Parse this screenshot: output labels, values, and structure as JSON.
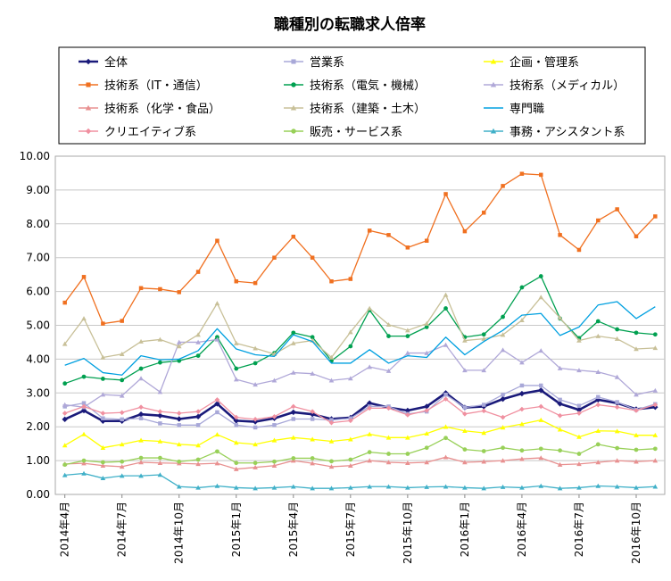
{
  "chart_data": {
    "type": "line",
    "title": "職種別の転職求人倍率",
    "xlabel": "",
    "ylabel": "",
    "ylim": [
      0,
      10
    ],
    "yticks": [
      "0.00",
      "1.00",
      "2.00",
      "3.00",
      "4.00",
      "5.00",
      "6.00",
      "7.00",
      "8.00",
      "9.00",
      "10.00"
    ],
    "grid": true,
    "legend_position": "top",
    "xtick_labels": [
      {
        "index": 0,
        "label": "2014年4月"
      },
      {
        "index": 3,
        "label": "2014年7月"
      },
      {
        "index": 6,
        "label": "2014年10月"
      },
      {
        "index": 9,
        "label": "2015年1月"
      },
      {
        "index": 12,
        "label": "2015年4月"
      },
      {
        "index": 15,
        "label": "2015年7月"
      },
      {
        "index": 18,
        "label": "2015年10月"
      },
      {
        "index": 21,
        "label": "2016年1月"
      },
      {
        "index": 24,
        "label": "2016年4月"
      },
      {
        "index": 27,
        "label": "2016年7月"
      },
      {
        "index": 30,
        "label": "2016年10月"
      }
    ],
    "series": [
      {
        "name": "全体",
        "color": "#1a1a7a",
        "marker": "diamond",
        "bold": true,
        "values": [
          2.22,
          2.48,
          2.17,
          2.17,
          2.37,
          2.33,
          2.23,
          2.3,
          2.68,
          2.18,
          2.15,
          2.25,
          2.43,
          2.37,
          2.23,
          2.27,
          2.7,
          2.57,
          2.48,
          2.6,
          3.0,
          2.57,
          2.6,
          2.82,
          2.98,
          3.08,
          2.68,
          2.5,
          2.8,
          2.7,
          2.52,
          2.58
        ]
      },
      {
        "name": "営業系",
        "color": "#a8a8d8",
        "marker": "square",
        "values": [
          2.6,
          2.7,
          2.25,
          2.22,
          2.25,
          2.1,
          2.05,
          2.05,
          2.43,
          2.05,
          1.98,
          2.05,
          2.23,
          2.23,
          2.2,
          2.25,
          2.6,
          2.6,
          2.38,
          2.45,
          2.95,
          2.57,
          2.65,
          2.95,
          3.22,
          3.22,
          2.8,
          2.62,
          2.88,
          2.73,
          2.5,
          2.67
        ]
      },
      {
        "name": "企画・管理系",
        "color": "#ffff00",
        "marker": "triangle",
        "values": [
          1.45,
          1.78,
          1.38,
          1.48,
          1.6,
          1.57,
          1.48,
          1.45,
          1.77,
          1.53,
          1.48,
          1.6,
          1.68,
          1.63,
          1.57,
          1.63,
          1.78,
          1.68,
          1.68,
          1.8,
          2.0,
          1.88,
          1.82,
          1.98,
          2.08,
          2.2,
          1.92,
          1.7,
          1.88,
          1.87,
          1.75,
          1.75
        ]
      },
      {
        "name": "技術系（IT・通信）",
        "color": "#f07020",
        "marker": "square",
        "values": [
          5.67,
          6.43,
          5.05,
          5.13,
          6.1,
          6.07,
          5.98,
          6.58,
          7.5,
          6.3,
          6.25,
          7.0,
          7.62,
          7.0,
          6.3,
          6.37,
          7.8,
          7.67,
          7.3,
          7.5,
          8.88,
          7.78,
          8.33,
          9.12,
          9.48,
          9.45,
          7.67,
          7.23,
          8.1,
          8.43,
          7.63,
          8.22
        ]
      },
      {
        "name": "技術系（電気・機械）",
        "color": "#00a050",
        "marker": "circle",
        "values": [
          3.28,
          3.48,
          3.42,
          3.38,
          3.72,
          3.9,
          3.95,
          4.1,
          4.65,
          3.72,
          3.88,
          4.18,
          4.78,
          4.65,
          3.95,
          4.38,
          5.45,
          4.68,
          4.68,
          4.95,
          5.5,
          4.65,
          4.73,
          5.25,
          6.12,
          6.45,
          5.2,
          4.62,
          5.12,
          4.88,
          4.78,
          4.73
        ]
      },
      {
        "name": "技術系（メディカル）",
        "color": "#b0a8d8",
        "marker": "triangle",
        "values": [
          2.65,
          2.58,
          2.95,
          2.92,
          3.43,
          3.03,
          4.5,
          4.5,
          4.58,
          3.4,
          3.25,
          3.37,
          3.6,
          3.57,
          3.37,
          3.43,
          3.77,
          3.65,
          4.18,
          4.18,
          4.42,
          3.67,
          3.67,
          4.27,
          3.9,
          4.25,
          3.73,
          3.67,
          3.62,
          3.47,
          2.95,
          3.07
        ]
      },
      {
        "name": "技術系（化学・食品）",
        "color": "#e89090",
        "marker": "triangle",
        "values": [
          0.9,
          0.92,
          0.85,
          0.82,
          0.95,
          0.93,
          0.92,
          0.9,
          0.92,
          0.75,
          0.8,
          0.85,
          1.0,
          0.92,
          0.82,
          0.85,
          1.0,
          0.95,
          0.93,
          0.95,
          1.1,
          0.95,
          0.97,
          1.0,
          1.05,
          1.08,
          0.88,
          0.9,
          0.95,
          1.0,
          0.97,
          1.0
        ]
      },
      {
        "name": "技術系（建築・土木）",
        "color": "#c8c098",
        "marker": "triangle",
        "values": [
          4.45,
          5.2,
          4.05,
          4.15,
          4.52,
          4.58,
          4.38,
          4.72,
          5.65,
          4.47,
          4.32,
          4.15,
          4.47,
          4.55,
          4.05,
          4.8,
          5.5,
          5.02,
          4.85,
          5.05,
          5.9,
          4.55,
          4.6,
          4.72,
          5.15,
          5.83,
          5.22,
          4.55,
          4.68,
          4.6,
          4.3,
          4.33
        ]
      },
      {
        "name": "専門職",
        "color": "#00a0e0",
        "marker": "none",
        "values": [
          3.82,
          4.02,
          3.6,
          3.53,
          4.1,
          3.98,
          4.0,
          4.25,
          4.9,
          4.3,
          4.13,
          4.08,
          4.72,
          4.52,
          3.88,
          3.88,
          4.28,
          3.88,
          4.1,
          4.05,
          4.65,
          4.13,
          4.52,
          4.85,
          5.3,
          5.35,
          4.7,
          4.95,
          5.6,
          5.7,
          5.2,
          5.55
        ]
      },
      {
        "name": "クリエイティブ系",
        "color": "#f090a0",
        "marker": "diamond",
        "values": [
          2.4,
          2.6,
          2.4,
          2.42,
          2.58,
          2.45,
          2.4,
          2.45,
          2.8,
          2.28,
          2.22,
          2.3,
          2.6,
          2.45,
          2.12,
          2.18,
          2.55,
          2.55,
          2.35,
          2.48,
          2.82,
          2.38,
          2.47,
          2.28,
          2.52,
          2.6,
          2.33,
          2.4,
          2.65,
          2.58,
          2.48,
          2.65
        ]
      },
      {
        "name": "販売・サービス系",
        "color": "#98d058",
        "marker": "circle",
        "values": [
          0.88,
          1.0,
          0.95,
          0.97,
          1.08,
          1.08,
          0.97,
          1.03,
          1.27,
          0.93,
          0.93,
          0.97,
          1.07,
          1.07,
          0.98,
          1.03,
          1.25,
          1.2,
          1.2,
          1.38,
          1.67,
          1.33,
          1.28,
          1.38,
          1.3,
          1.35,
          1.3,
          1.2,
          1.48,
          1.37,
          1.32,
          1.35
        ]
      },
      {
        "name": "事務・アシスタント系",
        "color": "#40b0c8",
        "marker": "triangle",
        "values": [
          0.57,
          0.62,
          0.48,
          0.55,
          0.55,
          0.58,
          0.23,
          0.2,
          0.25,
          0.2,
          0.18,
          0.2,
          0.23,
          0.18,
          0.18,
          0.2,
          0.23,
          0.23,
          0.2,
          0.22,
          0.23,
          0.2,
          0.18,
          0.22,
          0.2,
          0.25,
          0.18,
          0.2,
          0.25,
          0.23,
          0.2,
          0.23
        ]
      }
    ]
  }
}
